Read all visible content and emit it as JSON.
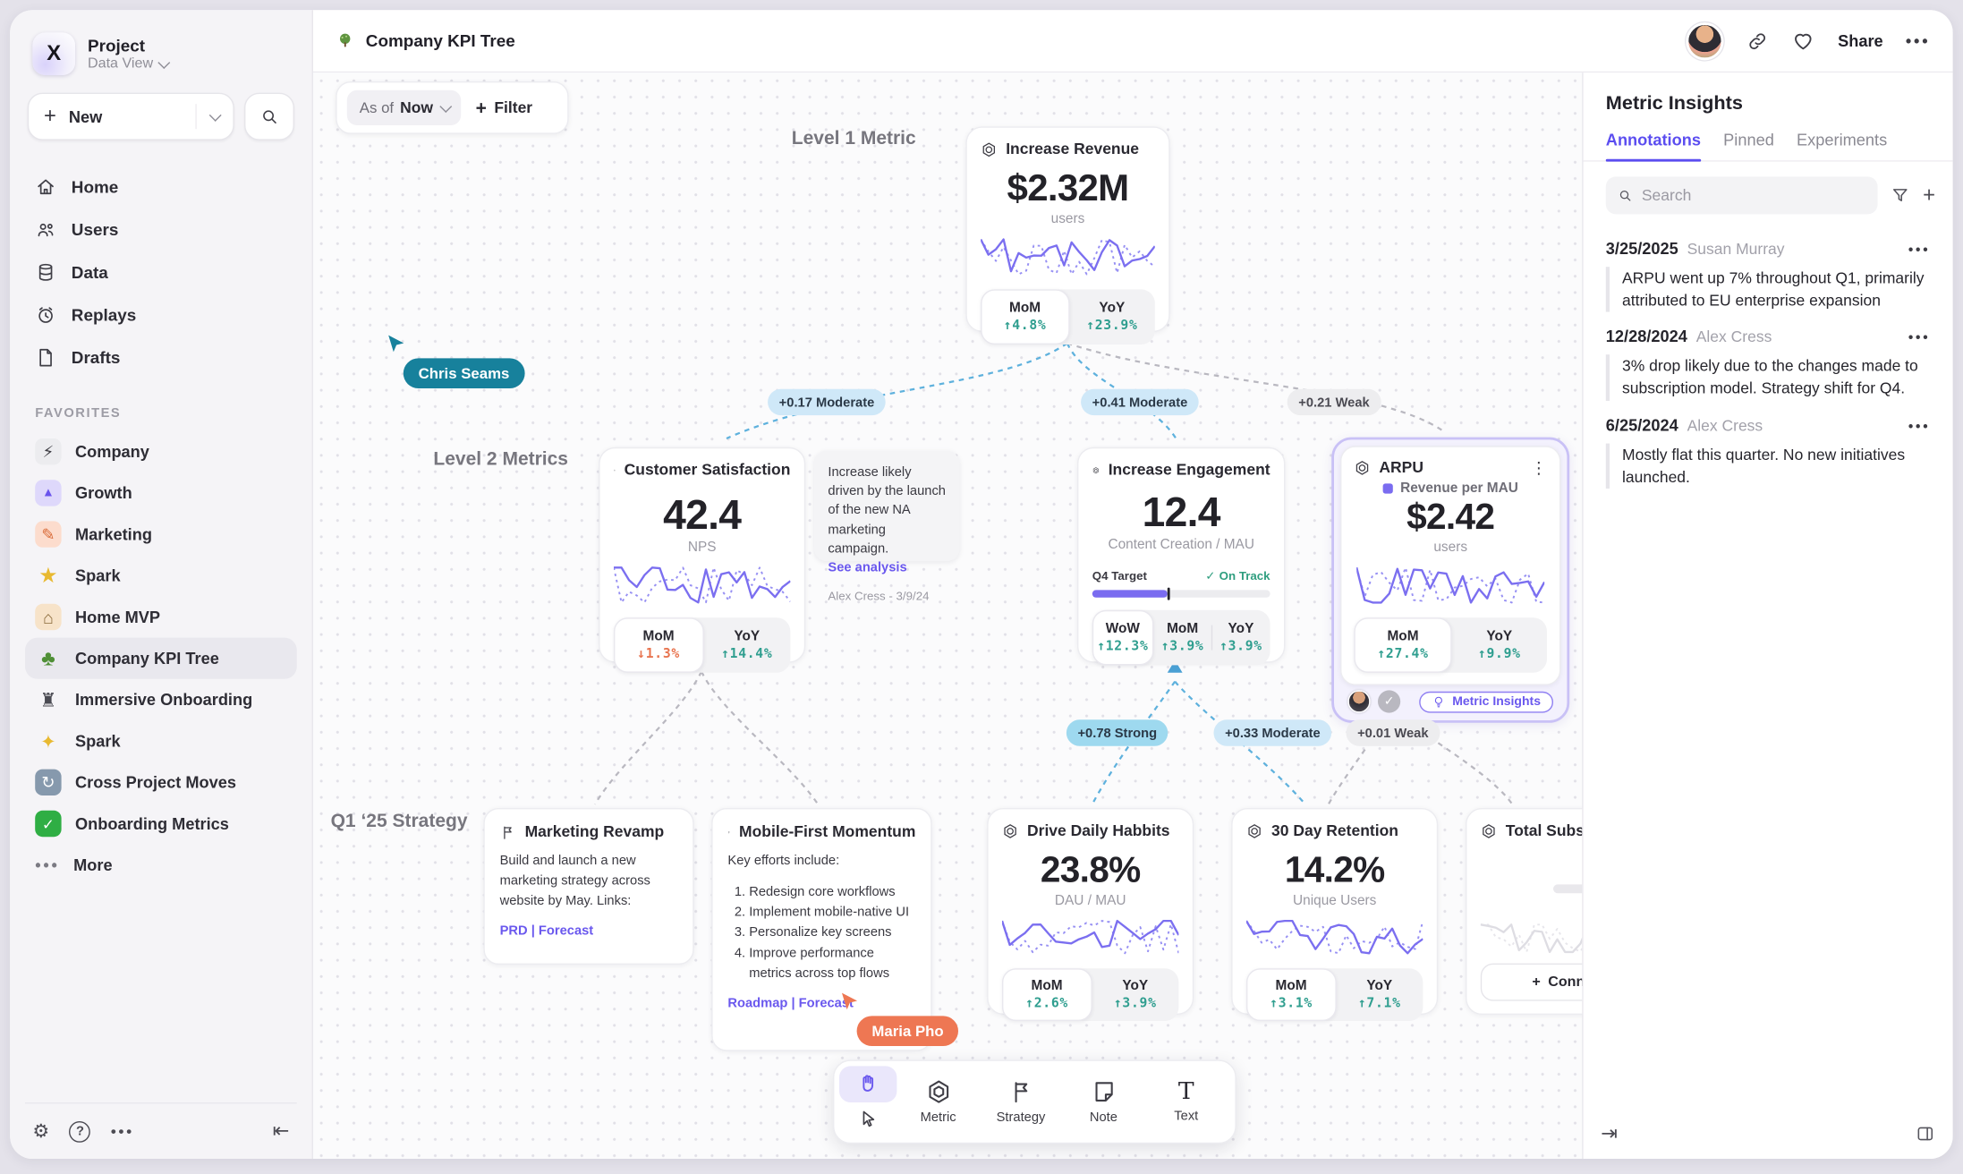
{
  "colors": {
    "accent": "#5b4df0",
    "positive": "#2f9e8f",
    "negative": "#e8744f",
    "edge_blue": "#5eb1dd",
    "edge_gray": "#b9b8c0",
    "cursor_teal": "#17819c",
    "cursor_orange": "#ee7753"
  },
  "sidebar": {
    "logo_glyph": "X",
    "project_title": "Project",
    "project_subtitle": "Data View",
    "new_label": "New",
    "nav": [
      {
        "label": "Home"
      },
      {
        "label": "Users"
      },
      {
        "label": "Data"
      },
      {
        "label": "Replays"
      },
      {
        "label": "Drafts"
      }
    ],
    "favorites_header": "FAVORITES",
    "favorites": [
      {
        "icon": "bolt-icon",
        "glyph": "⚡",
        "label": "Company"
      },
      {
        "icon": "rocket-icon",
        "glyph": "▲",
        "label": "Growth"
      },
      {
        "icon": "pencil-icon",
        "glyph": "✎",
        "label": "Marketing"
      },
      {
        "icon": "star-icon",
        "glyph": "★",
        "label": "Spark"
      },
      {
        "icon": "house-icon",
        "glyph": "⌂",
        "label": "Home MVP"
      },
      {
        "icon": "tree-icon",
        "glyph": "♣",
        "label": "Company KPI Tree"
      },
      {
        "icon": "train-icon",
        "glyph": "♜",
        "label": "Immersive Onboarding"
      },
      {
        "icon": "sparkles-icon",
        "glyph": "✦",
        "label": "Spark"
      },
      {
        "icon": "arrows-icon",
        "glyph": "↻",
        "label": "Cross Project Moves"
      },
      {
        "icon": "check-icon",
        "glyph": "✓",
        "label": "Onboarding Metrics"
      }
    ],
    "more_label": "More"
  },
  "topbar": {
    "title": "Company KPI Tree",
    "share_label": "Share"
  },
  "canvas": {
    "asof_label": "As of",
    "asof_value": "Now",
    "filter_label": "Filter",
    "level1_label": "Level 1 Metric",
    "level2_label": "Level 2 Metrics",
    "strategy_label": "Q1 ‘25 Strategy",
    "cursors": {
      "chris": "Chris Seams",
      "maria": "Maria Pho"
    },
    "edges": {
      "e1": "+0.17 Moderate",
      "e2": "+0.41 Moderate",
      "e3": "+0.21 Weak",
      "e4": "+0.78 Strong",
      "e5": "+0.33 Moderate",
      "e6": "+0.01 Weak"
    },
    "revenue": {
      "title": "Increase Revenue",
      "value": "$2.32M",
      "unit": "users",
      "stats": [
        {
          "label": "MoM",
          "value": "↑4.8%"
        },
        {
          "label": "YoY",
          "value": "↑23.9%"
        }
      ]
    },
    "csat": {
      "title": "Customer Satisfaction",
      "value": "42.4",
      "unit": "NPS",
      "stats": [
        {
          "label": "MoM",
          "value": "↓1.3%"
        },
        {
          "label": "YoY",
          "value": "↑14.4%"
        }
      ]
    },
    "note": {
      "text": "Increase likely driven by the launch of the new NA marketing campaign.",
      "link": "See analysis",
      "byline": "Alex Cress - 3/9/24"
    },
    "engagement": {
      "title": "Increase Engagement",
      "value": "12.4",
      "unit": "Content Creation / MAU",
      "target_label": "Q4 Target",
      "status": "On Track",
      "stats": [
        {
          "label": "WoW",
          "value": "↑12.3%"
        },
        {
          "label": "MoM",
          "value": "↑3.9%"
        },
        {
          "label": "YoY",
          "value": "↑3.9%"
        }
      ]
    },
    "arpu": {
      "title": "ARPU",
      "legend": "Revenue per MAU",
      "value": "$2.42",
      "unit": "users",
      "stats": [
        {
          "label": "MoM",
          "value": "↑27.4%"
        },
        {
          "label": "YoY",
          "value": "↑9.9%"
        }
      ],
      "badge": "Metric Insights"
    },
    "strategy1": {
      "title": "Marketing Revamp",
      "body": "Build and launch a new marketing strategy across website by May. Links:",
      "links": "PRD | Forecast"
    },
    "strategy2": {
      "title": "Mobile-First Momentum",
      "intro": "Key efforts include:",
      "items": [
        "Redesign core workflows",
        "Implement mobile-native UI",
        "Personalize key screens",
        "Improve performance metrics across top flows"
      ],
      "links": "Roadmap | Forecast"
    },
    "ddh": {
      "title": "Drive Daily Habbits",
      "value": "23.8%",
      "unit": "DAU / MAU",
      "stats": [
        {
          "label": "MoM",
          "value": "↑2.6%"
        },
        {
          "label": "YoY",
          "value": "↑3.9%"
        }
      ]
    },
    "retention": {
      "title": "30 Day Retention",
      "value": "14.2%",
      "unit": "Unique Users",
      "stats": [
        {
          "label": "MoM",
          "value": "↑3.1%"
        },
        {
          "label": "YoY",
          "value": "↑7.1%"
        }
      ]
    },
    "subs": {
      "title": "Total Subscript",
      "connect_label": "Connect"
    },
    "toolbar": {
      "metric": "Metric",
      "strategy": "Strategy",
      "note": "Note",
      "text": "Text"
    }
  },
  "panel": {
    "title": "Metric Insights",
    "tabs": [
      "Annotations",
      "Pinned",
      "Experiments"
    ],
    "search_placeholder": "Search",
    "annotations": [
      {
        "date": "3/25/2025",
        "author": "Susan Murray",
        "text": "ARPU went up 7% throughout Q1, primarily attributed to EU enterprise expansion"
      },
      {
        "date": "12/28/2024",
        "author": "Alex Cress",
        "text": "3% drop likely due to the changes made to subscription model. Strategy shift for Q4."
      },
      {
        "date": "6/25/2024",
        "author": "Alex Cress",
        "text": "Mostly flat this quarter. No new initiatives launched."
      }
    ]
  }
}
